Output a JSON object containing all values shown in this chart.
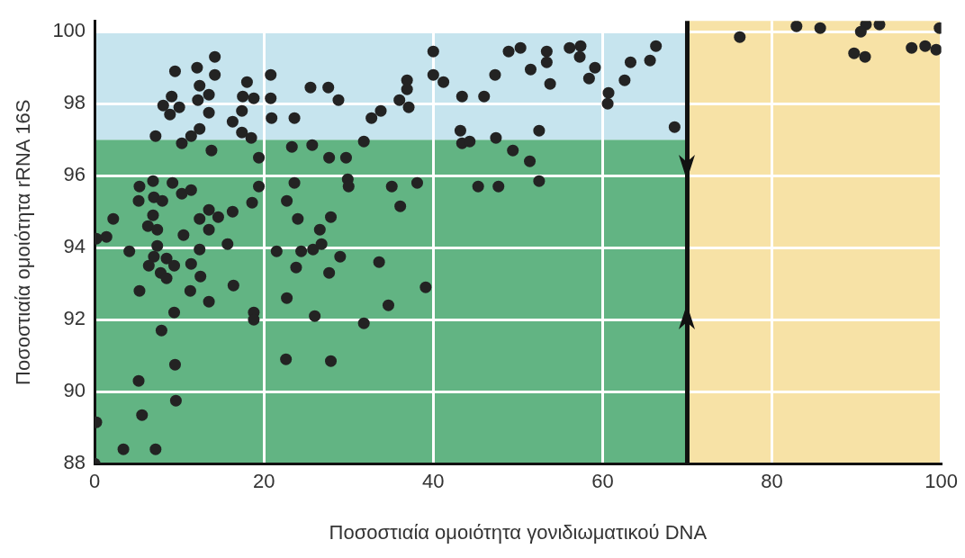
{
  "chart_data": {
    "type": "scatter",
    "xlabel": "Ποσοστιαία ομοιότητα γονιδιωματικού DNA",
    "ylabel": "Ποσοστιαία ομοιότητα rRNA 16S",
    "x": [
      14.2,
      12.1,
      9.5,
      14.2,
      20.8,
      18.0,
      12.4,
      9.1,
      8.1,
      10.0,
      8.9,
      13.5,
      12.2,
      17.5,
      18.8,
      20.8,
      25.5,
      27.6,
      28.8,
      13.5,
      17.4,
      16.3,
      20.9,
      23.6,
      7.2,
      12.4,
      11.4,
      10.3,
      17.4,
      18.5,
      13.8,
      19.4,
      23.3,
      25.7,
      27.7,
      29.7,
      31.8,
      32.7,
      5.3,
      6.9,
      9.2,
      7.0,
      5.2,
      8.0,
      10.3,
      11.4,
      19.4,
      18.6,
      23.6,
      22.7,
      29.9,
      30.0,
      2.2,
      6.9,
      6.3,
      7.4,
      12.4,
      13.5,
      14.6,
      16.3,
      13.5,
      10.5,
      24.0,
      27.9,
      26.6,
      0.2,
      1.4,
      4.1,
      7.4,
      7.0,
      8.5,
      9.4,
      6.4,
      7.8,
      8.5,
      12.4,
      11.4,
      12.5,
      5.3,
      11.3,
      13.5,
      16.4,
      15.7,
      9.4,
      7.9,
      18.8,
      18.8,
      9.5,
      5.2,
      9.6,
      5.6,
      0.2,
      3.4,
      7.2,
      0.0,
      21.5,
      24.4,
      25.8,
      26.8,
      23.8,
      27.7,
      29.0,
      22.7,
      26.0,
      31.8,
      22.6,
      27.9,
      33.6,
      33.8,
      36.9,
      36.9,
      36.0,
      37.1,
      40.0,
      40.0,
      41.2,
      43.4,
      46.0,
      47.3,
      48.9,
      50.3,
      51.5,
      53.4,
      53.4,
      53.8,
      56.1,
      57.4,
      57.3,
      59.1,
      58.4,
      60.7,
      60.6,
      62.6,
      63.3,
      65.6,
      66.3,
      68.5,
      43.2,
      43.4,
      44.3,
      47.4,
      52.5,
      49.4,
      51.4,
      52.5,
      45.3,
      47.7,
      35.1,
      38.1,
      36.1,
      39.1,
      34.7,
      76.2,
      82.9,
      85.7,
      91.1,
      90.5,
      92.7,
      89.7,
      91.0,
      99.8,
      96.5,
      98.1,
      99.4
    ],
    "values": [
      99.3,
      99.0,
      98.9,
      98.8,
      98.8,
      98.6,
      98.5,
      98.2,
      97.95,
      97.9,
      97.7,
      98.25,
      98.1,
      98.2,
      98.15,
      98.15,
      98.45,
      98.45,
      98.1,
      97.75,
      97.8,
      97.5,
      97.6,
      97.6,
      97.1,
      97.3,
      97.1,
      96.9,
      97.2,
      97.05,
      96.7,
      96.5,
      96.8,
      96.85,
      96.5,
      96.5,
      96.95,
      97.6,
      95.7,
      95.85,
      95.8,
      95.4,
      95.3,
      95.3,
      95.5,
      95.6,
      95.7,
      95.25,
      95.8,
      95.3,
      95.9,
      95.7,
      94.8,
      94.9,
      94.6,
      94.5,
      94.8,
      95.05,
      94.85,
      95.0,
      94.5,
      94.35,
      94.8,
      94.85,
      94.5,
      94.25,
      94.3,
      93.9,
      94.05,
      93.75,
      93.7,
      93.5,
      93.5,
      93.3,
      93.15,
      93.95,
      93.55,
      93.2,
      92.8,
      92.8,
      92.5,
      92.95,
      94.1,
      92.2,
      91.7,
      92.2,
      92.0,
      90.75,
      90.3,
      89.75,
      89.35,
      89.15,
      88.4,
      88.4,
      88.0,
      93.9,
      93.9,
      93.95,
      94.1,
      93.45,
      93.3,
      93.75,
      92.6,
      92.1,
      91.9,
      90.9,
      90.85,
      93.6,
      97.8,
      98.65,
      98.4,
      98.1,
      97.9,
      99.45,
      98.8,
      98.6,
      98.2,
      98.2,
      98.8,
      99.45,
      99.55,
      98.95,
      99.45,
      99.15,
      98.55,
      99.55,
      99.6,
      99.3,
      99.0,
      98.7,
      98.3,
      98.0,
      98.65,
      99.15,
      99.2,
      99.6,
      97.35,
      97.25,
      96.9,
      96.95,
      97.05,
      97.25,
      96.7,
      96.4,
      95.85,
      95.7,
      95.7,
      95.7,
      95.8,
      95.15,
      92.9,
      92.4,
      99.85,
      100.15,
      100.1,
      100.2,
      100.0,
      100.2,
      99.4,
      99.3,
      100.1,
      99.55,
      99.6,
      99.5
    ],
    "color": "#232323",
    "marker": "circle",
    "xlim": [
      0,
      100
    ],
    "xticks": [
      0,
      20,
      40,
      60,
      80,
      100
    ],
    "ylim": [
      88,
      100.3
    ],
    "yticks": [
      88,
      90,
      92,
      94,
      96,
      98,
      100
    ],
    "grid": true,
    "legend": false,
    "bands": [
      {
        "axis": "y",
        "from": 88,
        "to": 97,
        "color": "#62b483"
      },
      {
        "axis": "y",
        "from": 97,
        "to": 100,
        "color": "#c6e4ee"
      },
      {
        "axis": "x",
        "from": 70,
        "to": 100,
        "color": "#f7e2a6"
      }
    ],
    "ref_lines": [
      {
        "axis": "x",
        "value": 70,
        "color": "#111111"
      }
    ]
  }
}
